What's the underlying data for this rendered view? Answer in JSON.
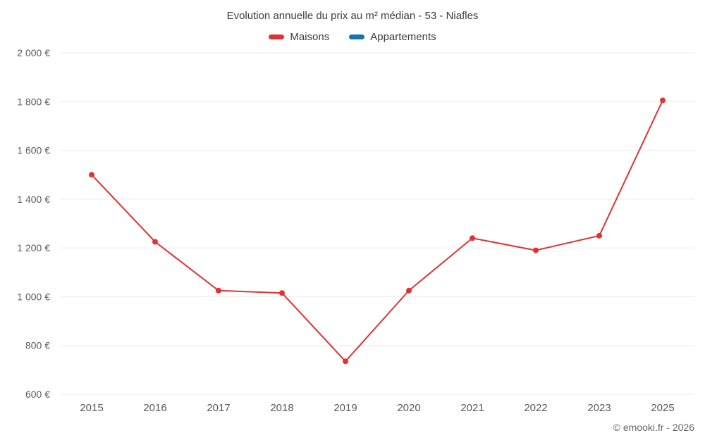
{
  "title": "Evolution annuelle du prix au m² médian - 53 - Niafles",
  "footer": "© emooki.fr - 2026",
  "chart_data": {
    "type": "line",
    "title": "Evolution annuelle du prix au m² médian - 53 - Niafles",
    "categories": [
      "2015",
      "2016",
      "2017",
      "2018",
      "2019",
      "2020",
      "2021",
      "2022",
      "2023",
      "2025"
    ],
    "series": [
      {
        "name": "Maisons",
        "color": "#e03232",
        "values": [
          1500,
          1225,
          1025,
          1015,
          735,
          1025,
          1240,
          1190,
          1250,
          1805
        ]
      },
      {
        "name": "Appartements",
        "color": "#1873ae",
        "values": []
      }
    ],
    "ylim": [
      600,
      2000
    ],
    "ytick_step": 200,
    "y_suffix": " €",
    "grid": true,
    "legend_position": "top",
    "colors": {
      "grid": "#ebebeb",
      "tick_text": "#595959",
      "title_text": "#3d3d3d"
    }
  }
}
